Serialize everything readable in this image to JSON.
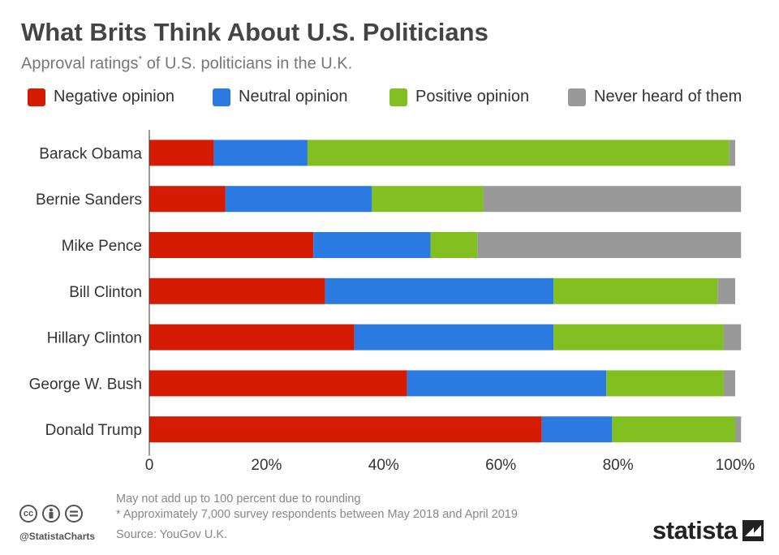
{
  "title": "What Brits Think About U.S. Politicians",
  "subtitle": "Approval ratings",
  "subtitle_mark": "*",
  "subtitle_rest": " of U.S. politicians in the U.K.",
  "footer": {
    "note1": "May not add up to 100 percent due to rounding",
    "note2": "* Approximately 7,000 survey respondents between May 2018 and April 2019",
    "source": "Source: YouGov U.K."
  },
  "branding": {
    "handle": "@StatistaCharts",
    "brand": "statista",
    "cc_icons": [
      "cc-icon",
      "attribution-icon",
      "no-derivatives-icon"
    ]
  },
  "chart_data": {
    "type": "bar",
    "orientation": "horizontal",
    "stacked": true,
    "categories": [
      "Barack Obama",
      "Bernie Sanders",
      "Mike Pence",
      "Bill Clinton",
      "Hillary Clinton",
      "George W. Bush",
      "Donald Trump"
    ],
    "series": [
      {
        "name": "Negative opinion",
        "color": "#d51b03",
        "values": [
          11,
          13,
          28,
          30,
          35,
          44,
          67
        ]
      },
      {
        "name": "Neutral opinion",
        "color": "#2a7ae2",
        "values": [
          16,
          25,
          20,
          39,
          34,
          34,
          12
        ]
      },
      {
        "name": "Positive opinion",
        "color": "#82bf20",
        "values": [
          72,
          19,
          8,
          28,
          29,
          20,
          21
        ]
      },
      {
        "name": "Never heard of them",
        "color": "#999999",
        "values": [
          1,
          44,
          45,
          3,
          3,
          2,
          1
        ]
      }
    ],
    "xlim": [
      0,
      100
    ],
    "x_ticks": [
      "0",
      "20%",
      "40%",
      "60%",
      "80%",
      "100%"
    ],
    "legend_position": "top",
    "grid": false
  }
}
